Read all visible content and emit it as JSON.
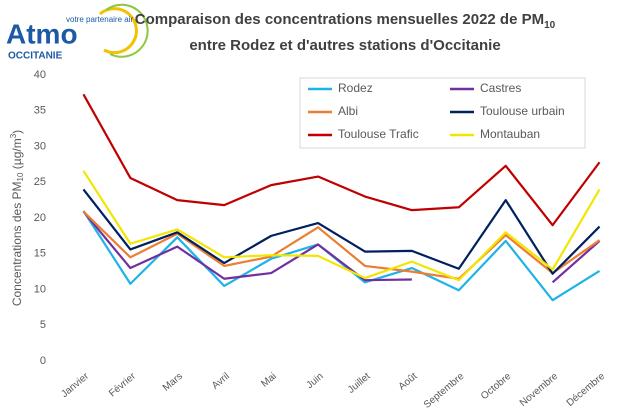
{
  "chart_data": {
    "type": "line",
    "logo": {
      "name": "Atmo",
      "tagline": "votre partenaire air",
      "region": "OCCITANIE"
    },
    "title": {
      "line1": "Comparaison des concentrations mensuelles 2022 de PM",
      "line1_sub": "10",
      "line2": "entre Rodez et d'autres stations d'Occitanie"
    },
    "ylabel": [
      "Concentrations des PM",
      "10",
      " (µg/m",
      "3",
      ")"
    ],
    "categories": [
      "Janvier",
      "Février",
      "Mars",
      "Avril",
      "Mai",
      "Juin",
      "Juillet",
      "Août",
      "Septembre",
      "Octobre",
      "Novembre",
      "Décembre"
    ],
    "ylim": [
      0,
      40
    ],
    "yticks": [
      0,
      5,
      10,
      15,
      20,
      25,
      30,
      35,
      40
    ],
    "series": [
      {
        "name": "Rodez",
        "color": "#1fb3e8",
        "values": [
          21,
          10.8,
          17.3,
          10.5,
          14.3,
          16.3,
          11,
          13,
          9.9,
          16.8,
          8.5,
          12.6
        ]
      },
      {
        "name": "Castres",
        "color": "#7030a0",
        "values": [
          20.9,
          13,
          16,
          11.5,
          12.3,
          16.3,
          11.3,
          11.4,
          null,
          null,
          11,
          16.8
        ]
      },
      {
        "name": "Albi",
        "color": "#ed7d31",
        "values": [
          20.9,
          14.5,
          17.8,
          13.3,
          14.6,
          18.7,
          13.3,
          12.5,
          11.5,
          17.6,
          12.3,
          16.9
        ]
      },
      {
        "name": "Toulouse urbain",
        "color": "#002060",
        "values": [
          24,
          15.6,
          18,
          13.7,
          17.5,
          19.3,
          15.3,
          15.4,
          12.9,
          22.5,
          12.2,
          18.8
        ]
      },
      {
        "name": "Toulouse Trafic",
        "color": "#c00000",
        "values": [
          37.3,
          25.6,
          22.5,
          21.8,
          24.6,
          25.8,
          23,
          21.1,
          21.5,
          27.3,
          19,
          27.8
        ]
      },
      {
        "name": "Montauban",
        "color": "#f2e600",
        "values": [
          26.6,
          16.4,
          18.4,
          14.5,
          14.8,
          14.7,
          11.6,
          13.9,
          11.3,
          18,
          12.8,
          24
        ]
      }
    ],
    "legend": "top"
  }
}
